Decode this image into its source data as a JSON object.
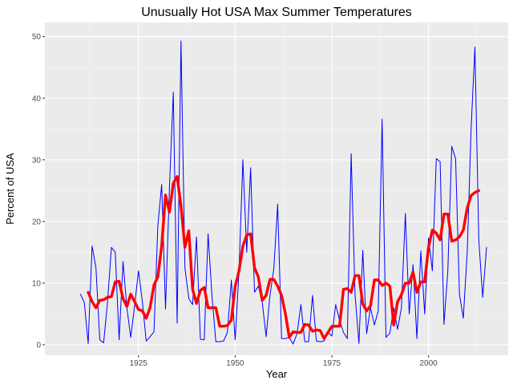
{
  "chart_data": {
    "type": "line",
    "title": "Unusually Hot USA Max Summer Temperatures",
    "xlabel": "Year",
    "ylabel": "Percent of USA",
    "xlim": [
      1900.8,
      2020.6
    ],
    "ylim": [
      -1.7,
      52.3
    ],
    "x_ticks": [
      1925,
      1950,
      1975,
      2000
    ],
    "y_ticks": [
      0,
      10,
      20,
      30,
      40,
      50
    ],
    "grid": true,
    "legend": "none",
    "colors": {
      "panel": "#ebebeb",
      "grid_major": "#ffffff",
      "grid_minor": "#f5f5f5",
      "annual": "#0000ff",
      "smoothed": "#ff0000"
    },
    "series": [
      {
        "style": "thin-blue",
        "x": [
          1910,
          1911,
          1912,
          1913,
          1914,
          1915,
          1916,
          1917,
          1918,
          1919,
          1920,
          1921,
          1922,
          1923,
          1924,
          1925,
          1926,
          1927,
          1928,
          1929,
          1930,
          1931,
          1932,
          1933,
          1934,
          1935,
          1936,
          1937,
          1938,
          1939,
          1940,
          1941,
          1942,
          1943,
          1944,
          1945,
          1946,
          1947,
          1948,
          1949,
          1950,
          1951,
          1952,
          1953,
          1954,
          1955,
          1956,
          1957,
          1958,
          1959,
          1960,
          1961,
          1962,
          1963,
          1964,
          1965,
          1966,
          1967,
          1968,
          1969,
          1970,
          1971,
          1972,
          1973,
          1974,
          1975,
          1976,
          1977,
          1978,
          1979,
          1980,
          1981,
          1982,
          1983,
          1984,
          1985,
          1986,
          1987,
          1988,
          1989,
          1990,
          1991,
          1992,
          1993,
          1994,
          1995,
          1996,
          1997,
          1998,
          1999,
          2000,
          2001,
          2002,
          2003,
          2004,
          2005,
          2006,
          2007,
          2008,
          2009,
          2010,
          2011,
          2012,
          2013,
          2014,
          2015
        ],
        "values": [
          8.2,
          6.8,
          0.2,
          16,
          12.5,
          0.8,
          0.3,
          7,
          15.8,
          15,
          0.8,
          13.5,
          6,
          1.2,
          6.3,
          12,
          7,
          0.6,
          1.3,
          2.1,
          19.3,
          26,
          5.8,
          25.5,
          41,
          3.5,
          49.3,
          12.5,
          7.5,
          6.5,
          17.5,
          0.9,
          0.8,
          18,
          8,
          0.5,
          0.5,
          0.6,
          2,
          10.5,
          0.8,
          12,
          30,
          15,
          28.7,
          8.5,
          9.5,
          7,
          1.3,
          8,
          12.3,
          22.8,
          1,
          1,
          1.2,
          0.1,
          1.8,
          6.5,
          0.5,
          0.5,
          8,
          0.6,
          0.5,
          0.6,
          2,
          1.4,
          6.5,
          4,
          2,
          1,
          31,
          8.2,
          0.2,
          15.3,
          1.8,
          6,
          3.2,
          5.5,
          36.6,
          1.2,
          1.9,
          6,
          2.5,
          6,
          21.3,
          5,
          13,
          1,
          15.2,
          5,
          17.3,
          12,
          30.2,
          29.7,
          3.3,
          12,
          32.2,
          30.2,
          8.2,
          4.3,
          15,
          35,
          48.3,
          17,
          7.7,
          15.8
        ]
      },
      {
        "style": "thick-red",
        "x": [
          1912,
          1913,
          1914,
          1915,
          1916,
          1917,
          1918,
          1919,
          1920,
          1921,
          1922,
          1923,
          1924,
          1925,
          1926,
          1927,
          1928,
          1929,
          1930,
          1931,
          1932,
          1933,
          1934,
          1935,
          1936,
          1937,
          1938,
          1939,
          1940,
          1941,
          1942,
          1943,
          1944,
          1945,
          1946,
          1947,
          1948,
          1949,
          1950,
          1951,
          1952,
          1953,
          1954,
          1955,
          1956,
          1957,
          1958,
          1959,
          1960,
          1961,
          1962,
          1963,
          1964,
          1965,
          1966,
          1967,
          1968,
          1969,
          1970,
          1971,
          1972,
          1973,
          1974,
          1975,
          1976,
          1977,
          1978,
          1979,
          1980,
          1981,
          1982,
          1983,
          1984,
          1985,
          1986,
          1987,
          1988,
          1989,
          1990,
          1991,
          1992,
          1993,
          1994,
          1995,
          1996,
          1997,
          1998,
          1999,
          2000,
          2001,
          2002,
          2003,
          2004,
          2005,
          2006,
          2007,
          2008,
          2009,
          2010,
          2011,
          2012,
          2013
        ],
        "values": [
          8.5,
          7,
          6,
          7.2,
          7.3,
          7.7,
          7.8,
          10.2,
          10.3,
          7.5,
          6.2,
          8.2,
          7,
          5.7,
          5.5,
          4.3,
          6,
          9.7,
          11,
          16,
          24.3,
          21.5,
          26.2,
          27.3,
          22.5,
          15.8,
          18.5,
          9,
          6.7,
          8.8,
          9.3,
          6,
          6,
          6,
          3,
          3,
          3.1,
          4,
          9.5,
          12,
          16,
          17.8,
          18,
          12.5,
          11,
          7.2,
          8,
          10.6,
          10.6,
          9.5,
          8,
          5,
          1.2,
          2.1,
          2,
          2,
          3.3,
          3.2,
          2.2,
          2.4,
          2.3,
          1,
          2,
          3,
          3,
          3,
          9,
          9.1,
          8.5,
          11.2,
          11.2,
          6.6,
          5.5,
          6.3,
          10.5,
          10.5,
          9.6,
          10,
          9.5,
          3.2,
          7,
          8.1,
          10,
          10,
          11.8,
          8.5,
          10.2,
          10.2,
          15.8,
          18.6,
          18.1,
          17,
          21.2,
          21.2,
          16.8,
          17,
          17.5,
          18.6,
          22.2,
          24.2,
          24.7,
          25
        ]
      }
    ]
  }
}
